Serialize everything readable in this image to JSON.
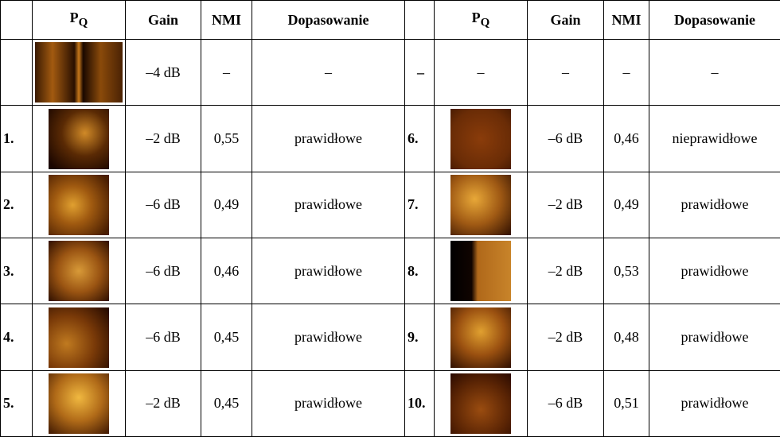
{
  "table": {
    "header": {
      "pq": "P",
      "pq_sub": "Q",
      "gain": "Gain",
      "nmi": "NMI",
      "fit": "Dopasowanie"
    },
    "rows": [
      {
        "left": {
          "gain": "–4 dB",
          "nmi": "–",
          "fit": "–"
        },
        "right": {
          "num": "–",
          "pq": "–",
          "gain": "–",
          "nmi": "–",
          "fit": "–"
        }
      },
      {
        "left": {
          "num": "1.",
          "gain": "–2 dB",
          "nmi": "0,55",
          "fit": "prawidłowe"
        },
        "right": {
          "num": "6.",
          "gain": "–6 dB",
          "nmi": "0,46",
          "fit": "nieprawidłowe"
        }
      },
      {
        "left": {
          "num": "2.",
          "gain": "–6 dB",
          "nmi": "0,49",
          "fit": "prawidłowe"
        },
        "right": {
          "num": "7.",
          "gain": "–2 dB",
          "nmi": "0,49",
          "fit": "prawidłowe"
        }
      },
      {
        "left": {
          "num": "3.",
          "gain": "–6 dB",
          "nmi": "0,46",
          "fit": "prawidłowe"
        },
        "right": {
          "num": "8.",
          "gain": "–2 dB",
          "nmi": "0,53",
          "fit": "prawidłowe"
        }
      },
      {
        "left": {
          "num": "4.",
          "gain": "–6 dB",
          "nmi": "0,45",
          "fit": "prawidłowe"
        },
        "right": {
          "num": "9.",
          "gain": "–2 dB",
          "nmi": "0,48",
          "fit": "prawidłowe"
        }
      },
      {
        "left": {
          "num": "5.",
          "gain": "–2 dB",
          "nmi": "0,45",
          "fit": "prawidłowe"
        },
        "right": {
          "num": "10.",
          "gain": "–6 dB",
          "nmi": "0,51",
          "fit": "prawidłowe"
        }
      }
    ]
  }
}
